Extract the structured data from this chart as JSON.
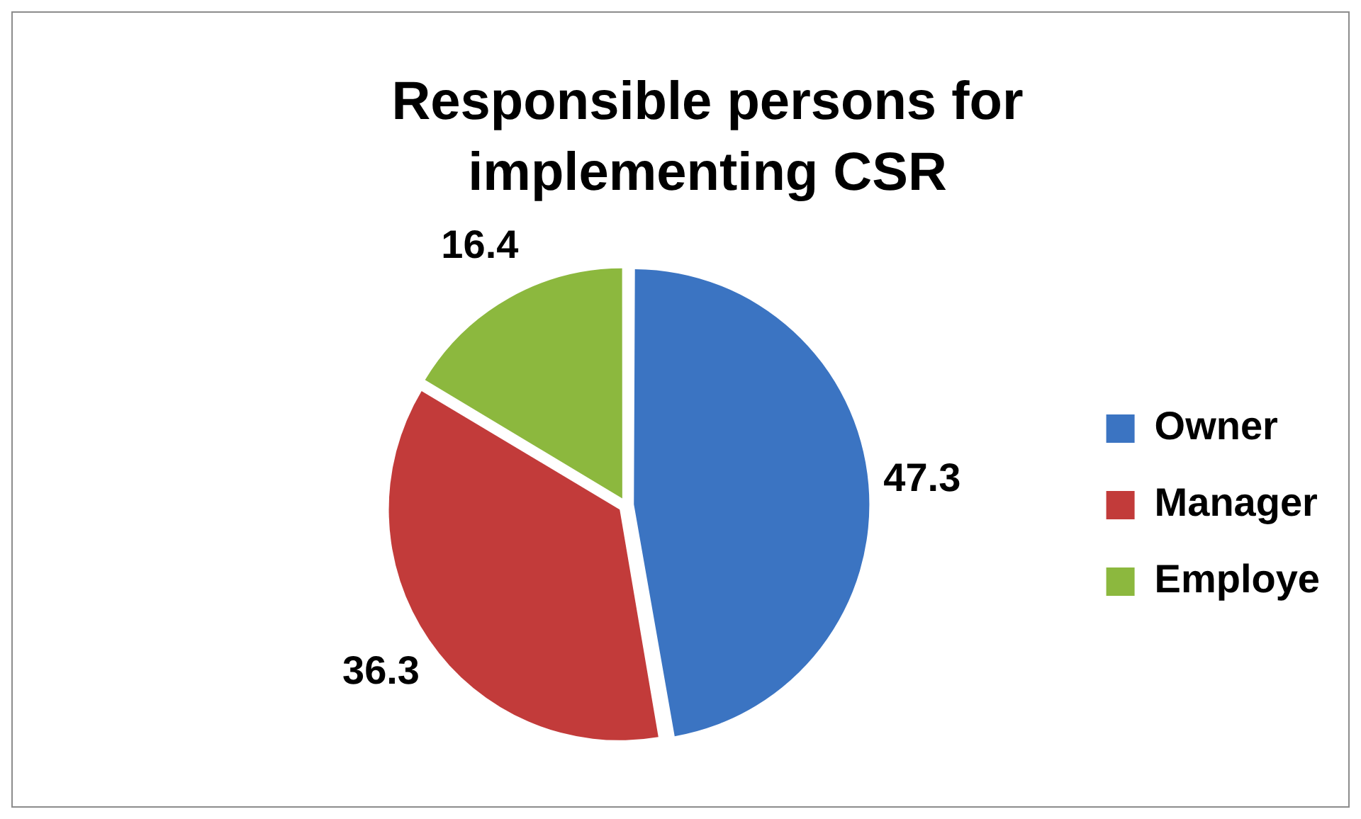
{
  "chart_data": {
    "type": "pie",
    "title": "Responsible persons for implementing CSR",
    "categories": [
      "Owner",
      "Manager",
      "Employe"
    ],
    "values": [
      47.3,
      36.3,
      16.4
    ],
    "colors": [
      "#3b74c2",
      "#c23b3a",
      "#8cb83e"
    ],
    "data_labels": true,
    "legend": "right"
  }
}
